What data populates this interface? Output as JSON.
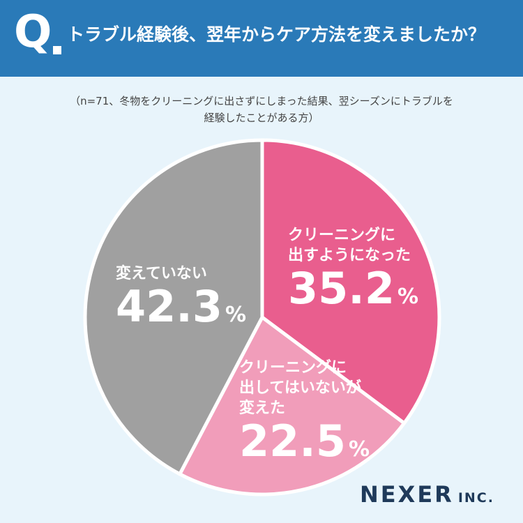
{
  "header": {
    "q_mark": "Q",
    "question": "トラブル経験後、翌年からケア方法を変えましたか？"
  },
  "note_lines": [
    "（n=71、冬物をクリーニングに出さずにしまった結果、翌シーズンにトラブルを",
    "経験したことがある方）"
  ],
  "chart_data": {
    "type": "pie",
    "slices": [
      {
        "label_lines": [
          "クリーニングに",
          "出すようになった"
        ],
        "value": 35.2,
        "value_text": "35.2",
        "unit": "%",
        "color": "#e95e8e"
      },
      {
        "label_lines": [
          "クリーニングに",
          "出してはいないが",
          "変えた"
        ],
        "value": 22.5,
        "value_text": "22.5",
        "unit": "%",
        "color": "#f19dba"
      },
      {
        "label_lines": [
          "変えていない"
        ],
        "value": 42.3,
        "value_text": "42.3",
        "unit": "%",
        "color": "#a0a0a0"
      }
    ],
    "start": "12 o'clock",
    "direction": "clockwise",
    "legend": "none"
  },
  "brand": {
    "name": "NEXER",
    "suffix": "INC."
  }
}
